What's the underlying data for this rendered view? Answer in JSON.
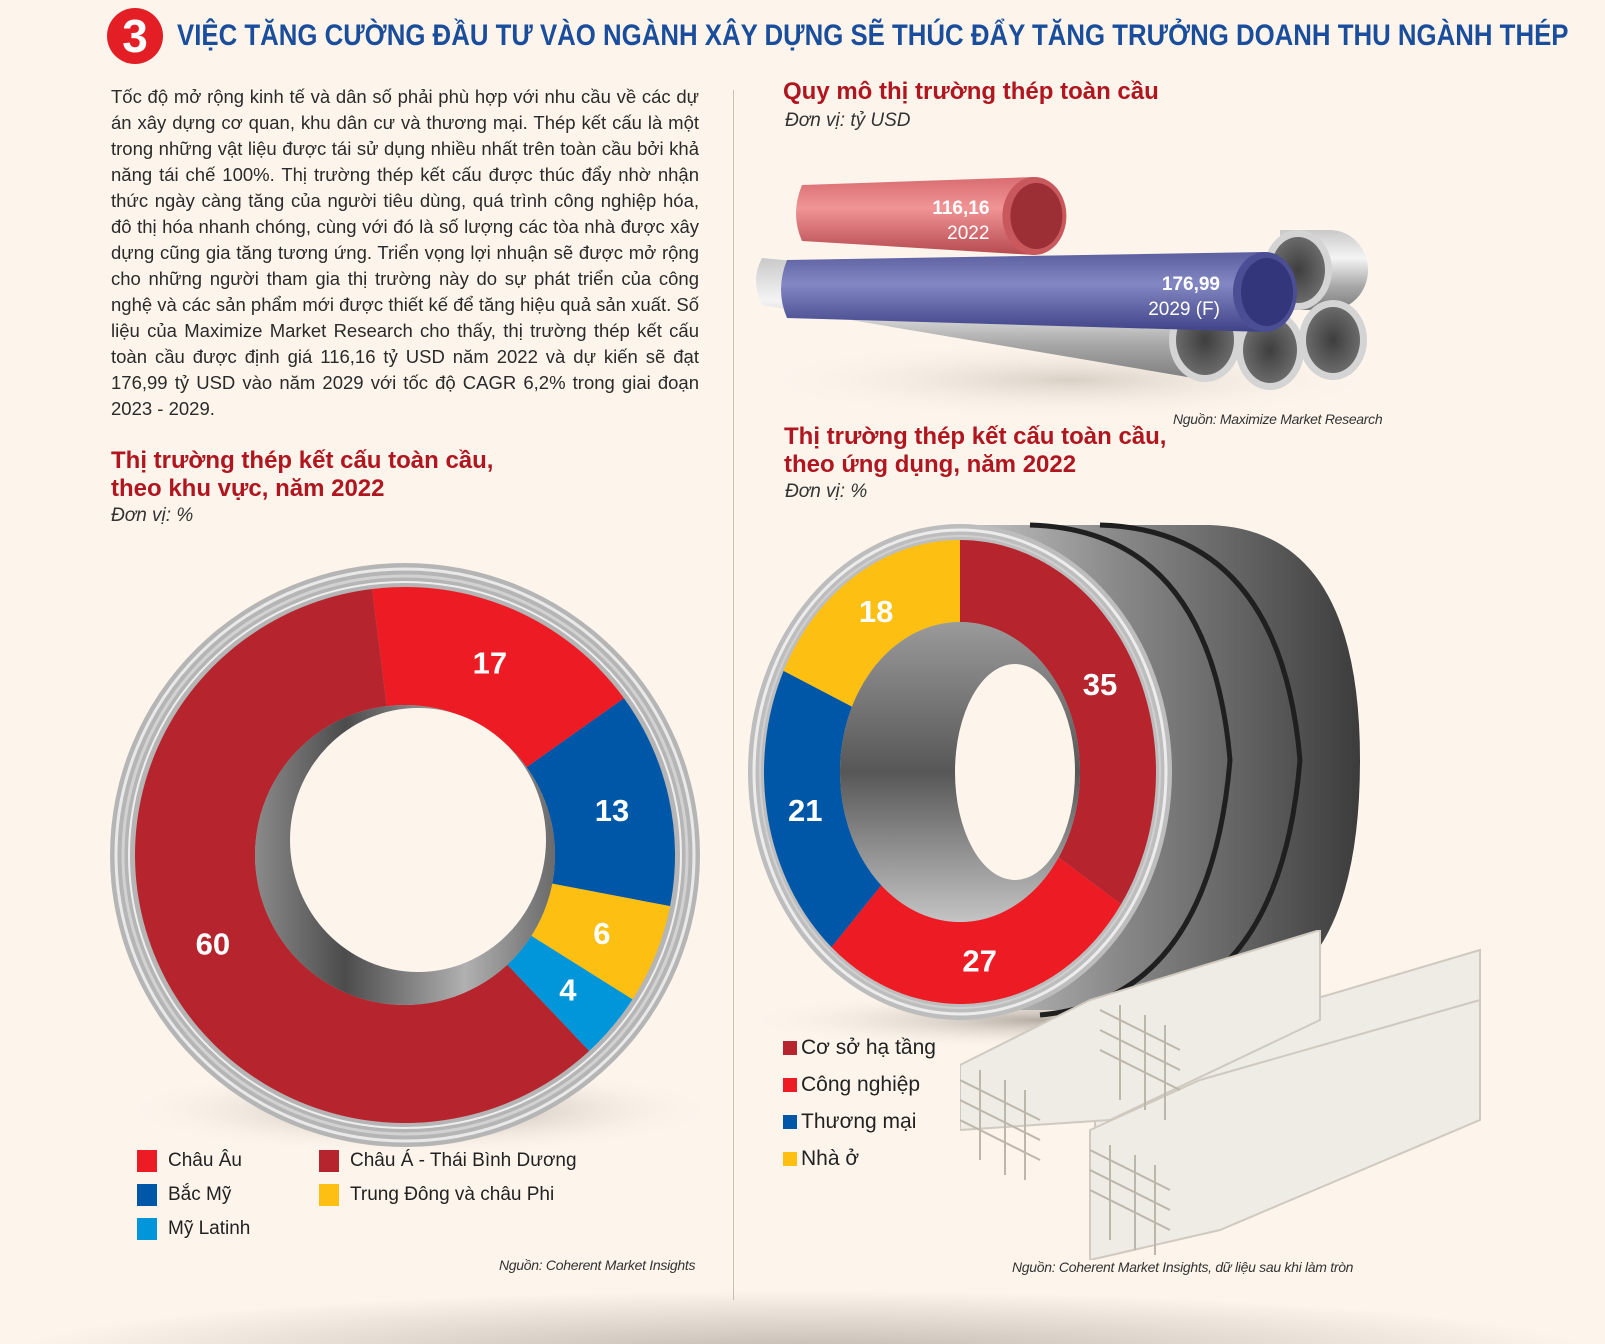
{
  "header": {
    "number": "3",
    "title": "VIỆC TĂNG CƯỜNG ĐẦU TƯ VÀO NGÀNH XÂY DỰNG SẼ THÚC ĐẨY TĂNG TRƯỞNG DOANH THU NGÀNH THÉP"
  },
  "intro_text": "Tốc độ mở rộng kinh tế và dân số phải phù hợp với nhu cầu về các dự án xây dựng cơ quan, khu dân cư và thương mại. Thép kết cấu là một trong những vật liệu được tái sử dụng nhiều nhất trên toàn cầu bởi khả năng tái chế 100%. Thị trường thép kết cấu được thúc đẩy nhờ nhận thức ngày càng tăng của người tiêu dùng, quá trình công nghiệp hóa, đô thị hóa nhanh chóng, cùng với đó là số lượng các tòa nhà được xây dựng cũng gia tăng tương ứng. Triển vọng lợi nhuận sẽ được mở rộng cho những người tham gia thị trường này do sự phát triển của công nghệ và các sản phẩm mới được thiết kế để tăng hiệu quả sản xuất. Số liệu của Maximize Market Research cho thấy, thị trường thép kết cấu toàn cầu được định giá 116,16 tỷ USD năm 2022 và dự kiến sẽ đạt 176,99 tỷ USD vào năm 2029 với tốc độ CAGR 6,2% trong giai đoạn 2023 - 2029.",
  "colors": {
    "title_blue": "#1a4e9c",
    "accent_red": "#b0161f",
    "background": "#fdf5ec"
  },
  "chart_data": [
    {
      "type": "bar",
      "title": "Quy mô thị trường thép toàn cầu",
      "unit": "Đơn vị: tỷ USD",
      "categories": [
        "2022",
        "2029 (F)"
      ],
      "values": [
        116.16,
        176.99
      ],
      "value_labels": [
        "116,16",
        "176,99"
      ],
      "colors": [
        "#e07a7e",
        "#6b6fb0"
      ],
      "source": "Nguồn: Maximize Market Research"
    },
    {
      "type": "pie",
      "title": "Thị trường thép kết cấu toàn cầu, theo khu vực, năm 2022",
      "unit": "Đơn vị: %",
      "slices": [
        {
          "label": "Châu Âu",
          "value": 17,
          "color": "#ed1c24"
        },
        {
          "label": "Bắc Mỹ",
          "value": 13,
          "color": "#0057a8"
        },
        {
          "label": "Trung Đông và châu Phi",
          "value": 6,
          "color": "#fcbf12"
        },
        {
          "label": "Mỹ Latinh",
          "value": 4,
          "color": "#0096d9"
        },
        {
          "label": "Châu Á - Thái Bình Dương",
          "value": 60,
          "color": "#b6252e"
        }
      ],
      "legend": [
        {
          "label": "Châu Âu",
          "color": "#ed1c24"
        },
        {
          "label": "Châu Á - Thái Bình Dương",
          "color": "#b6252e"
        },
        {
          "label": "Bắc Mỹ",
          "color": "#0057a8"
        },
        {
          "label": "Trung Đông và châu Phi",
          "color": "#fcbf12"
        },
        {
          "label": "Mỹ Latinh",
          "color": "#0096d9"
        }
      ],
      "legend_position": "bottom-left",
      "source": "Nguồn: Coherent Market Insights"
    },
    {
      "type": "pie",
      "title": "Thị trường thép kết cấu toàn cầu, theo ứng dụng, năm 2022",
      "unit": "Đơn vị: %",
      "slices": [
        {
          "label": "Cơ sở hạ tầng",
          "value": 35,
          "color": "#b6252e"
        },
        {
          "label": "Công nghiệp",
          "value": 27,
          "color": "#ed1c24"
        },
        {
          "label": "Thương mại",
          "value": 21,
          "color": "#0057a8"
        },
        {
          "label": "Nhà ở",
          "value": 18,
          "color": "#fcbf12"
        }
      ],
      "legend": [
        {
          "label": "Cơ sở hạ tầng",
          "color": "#b6252e"
        },
        {
          "label": "Công nghiệp",
          "color": "#ed1c24"
        },
        {
          "label": "Thương mại",
          "color": "#0057a8"
        },
        {
          "label": "Nhà ở",
          "color": "#fcbf12"
        }
      ],
      "legend_position": "bottom-left",
      "source": "Nguồn: Coherent Market Insights, dữ liệu sau khi làm tròn"
    }
  ]
}
